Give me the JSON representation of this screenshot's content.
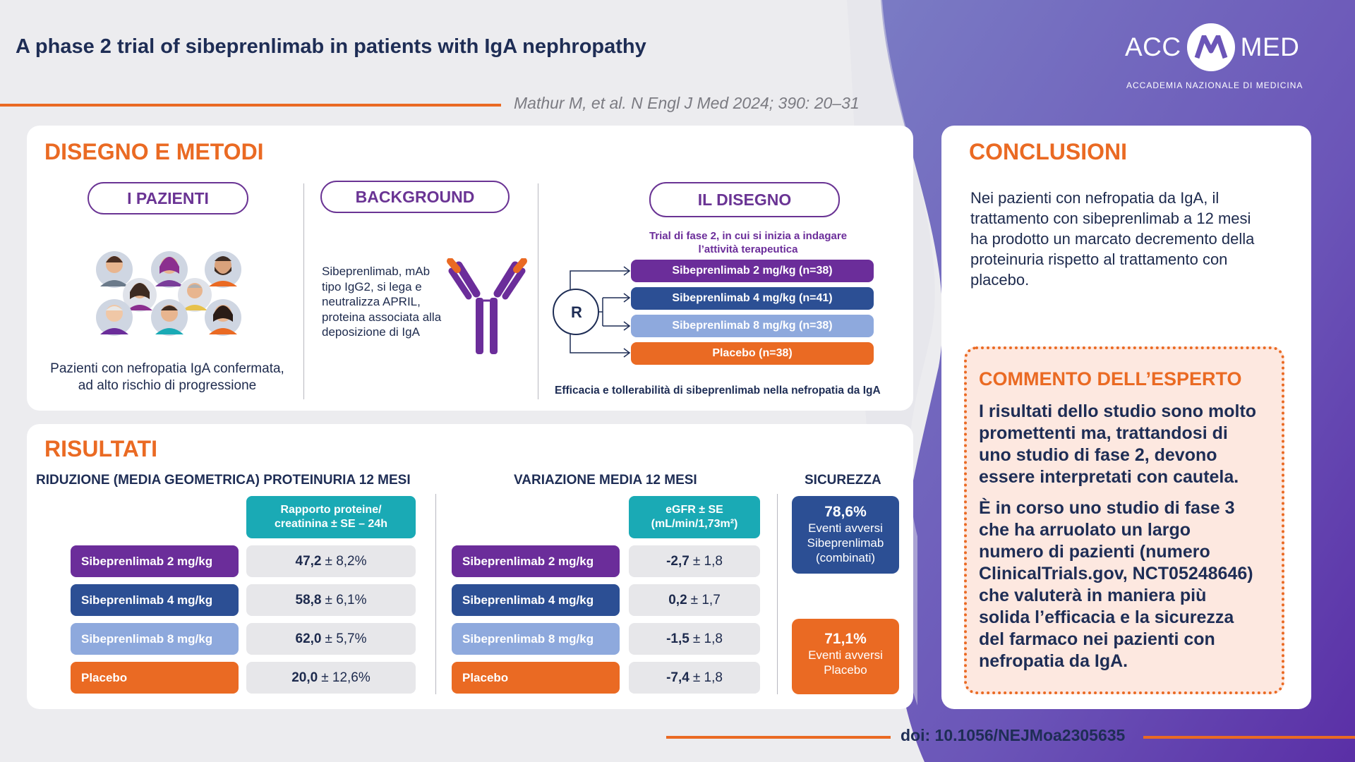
{
  "header": {
    "title": "A phase 2 trial of sibeprenlimab in patients with IgA nephropathy",
    "reference": "Mathur M, et al. N Engl J Med 2024; 390: 20–31",
    "logo_left": "ACC",
    "logo_right": "MED",
    "logo_subtitle": "ACCADEMIA NAZIONALE DI MEDICINA"
  },
  "design": {
    "section_title": "DISEGNO E METODI",
    "patients": {
      "title": "I PAZIENTI",
      "description_line1": "Pazienti con nefropatia IgA confermata,",
      "description_line2": "ad alto rischio di progressione"
    },
    "background": {
      "title": "BACKGROUND",
      "lines": [
        "Sibeprenlimab, mAb",
        "tipo IgG2, si lega e",
        "neutralizza APRIL,",
        "proteina associata alla",
        "deposizione di IgA"
      ]
    },
    "trial": {
      "title": "IL DISEGNO",
      "subtitle_line1": "Trial di fase 2, in cui si inizia a indagare",
      "subtitle_line2": "l’attività terapeutica",
      "randomization_label": "R",
      "arms": [
        "Sibeprenlimab 2 mg/kg (n=38)",
        "Sibeprenlimab 4 mg/kg (n=41)",
        "Sibeprenlimab 8 mg/kg (n=38)",
        "Placebo (n=38)"
      ],
      "footer": "Efficacia e tollerabilità di sibeprenlimab nella nefropatia da IgA"
    }
  },
  "results": {
    "section_title": "RISULTATI",
    "proteinuria": {
      "heading": "RIDUZIONE (MEDIA GEOMETRICA) PROTEINURIA 12 MESI",
      "column_header_line1": "Rapporto proteine/",
      "column_header_line2": "creatinina ± SE – 24h",
      "rows": [
        {
          "label": "Sibeprenlimab 2 mg/kg",
          "value": "47,2",
          "error": "± 8,2%"
        },
        {
          "label": "Sibeprenlimab 4 mg/kg",
          "value": "58,8",
          "error": "± 6,1%"
        },
        {
          "label": "Sibeprenlimab 8 mg/kg",
          "value": "62,0",
          "error": "± 5,7%"
        },
        {
          "label": "Placebo",
          "value": "20,0",
          "error": "± 12,6%"
        }
      ]
    },
    "egfr": {
      "heading": "VARIAZIONE MEDIA 12 MESI",
      "column_header_line1": "eGFR ± SE",
      "column_header_line2": "(mL/min/1,73m²)",
      "rows": [
        {
          "label": "Sibeprenlimab 2 mg/kg",
          "value": "-2,7",
          "error": "± 1,8"
        },
        {
          "label": "Sibeprenlimab 4 mg/kg",
          "value": "0,2",
          "error": "± 1,7"
        },
        {
          "label": "Sibeprenlimab 8 mg/kg",
          "value": "-1,5",
          "error": "± 1,8"
        },
        {
          "label": "Placebo",
          "value": "-7,4",
          "error": "± 1,8"
        }
      ]
    },
    "safety": {
      "heading": "SICUREZZA",
      "active": {
        "value": "78,6%",
        "line1": "Eventi avversi",
        "line2": "Sibeprenlimab",
        "line3": "(combinati)"
      },
      "placebo": {
        "value": "71,1%",
        "line1": "Eventi avversi",
        "line2": "Placebo"
      }
    }
  },
  "conclusions": {
    "title": "CONCLUSIONI",
    "lines": [
      "Nei pazienti con nefropatia da IgA, il",
      "trattamento con sibeprenlimab a 12 mesi",
      "ha prodotto un marcato decremento della",
      "proteinuria rispetto al trattamento con",
      "placebo."
    ]
  },
  "expert": {
    "title": "COMMENTO DELL’ESPERTO",
    "para1": [
      "I risultati dello studio sono molto",
      "promettenti ma, trattandosi di",
      "uno studio di fase 2, devono",
      "essere interpretati con cautela."
    ],
    "para2": [
      "È in corso uno studio di fase 3",
      "che ha arruolato un largo",
      "numero di pazienti (numero",
      "ClinicalTrials.gov, NCT05248646)",
      "che valuterà in maniera più",
      "solida l’efficacia e la sicurezza",
      "del farmaco nei pazienti con",
      "nefropatia da IgA."
    ]
  },
  "footer": {
    "doi": "doi: 10.1056/NEJMoa2305635"
  },
  "colors": {
    "orange": "#ea6a23",
    "purple": "#6b2d9a",
    "blue": "#2c4f94",
    "light_blue": "#8ea9dd",
    "teal": "#1aaab5",
    "navy": "#1e2d55"
  }
}
